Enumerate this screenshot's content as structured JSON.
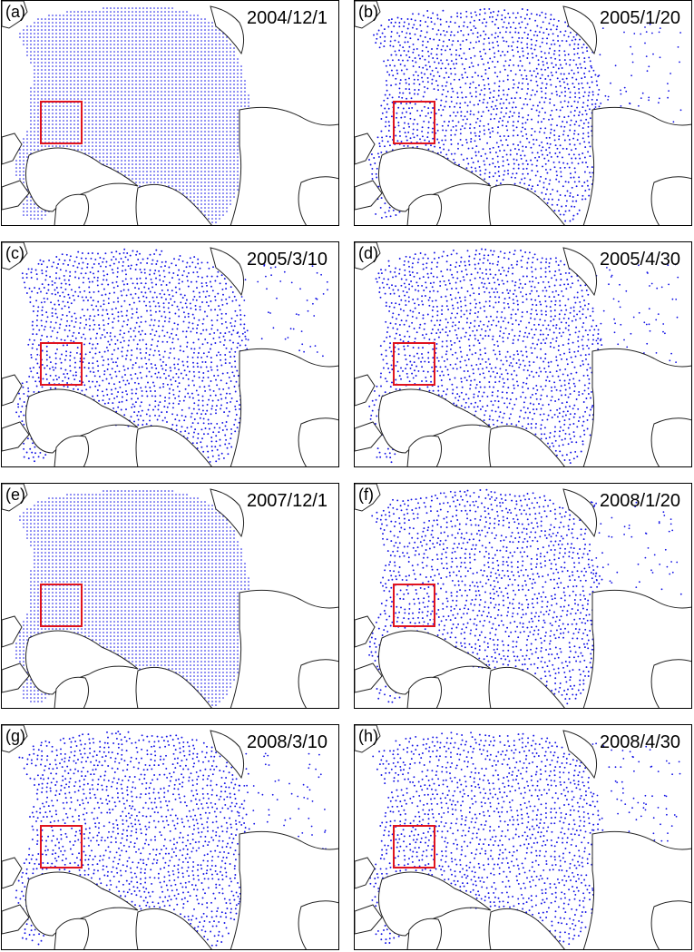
{
  "colors": {
    "dot": "#1010e6",
    "box": "#e0141e",
    "coast": "#222222"
  },
  "panels": [
    {
      "letter": "(a)",
      "date": "2004/12/1",
      "pattern": "grid"
    },
    {
      "letter": "(b)",
      "date": "2005/1/20",
      "pattern": "deformed"
    },
    {
      "letter": "(c)",
      "date": "2005/3/10",
      "pattern": "deformed"
    },
    {
      "letter": "(d)",
      "date": "2005/4/30",
      "pattern": "deformed"
    },
    {
      "letter": "(e)",
      "date": "2007/12/1",
      "pattern": "grid"
    },
    {
      "letter": "(f)",
      "date": "2008/1/20",
      "pattern": "deformed"
    },
    {
      "letter": "(g)",
      "date": "2008/3/10",
      "pattern": "deformed"
    },
    {
      "letter": "(h)",
      "date": "2008/4/30",
      "pattern": "deformed"
    }
  ]
}
